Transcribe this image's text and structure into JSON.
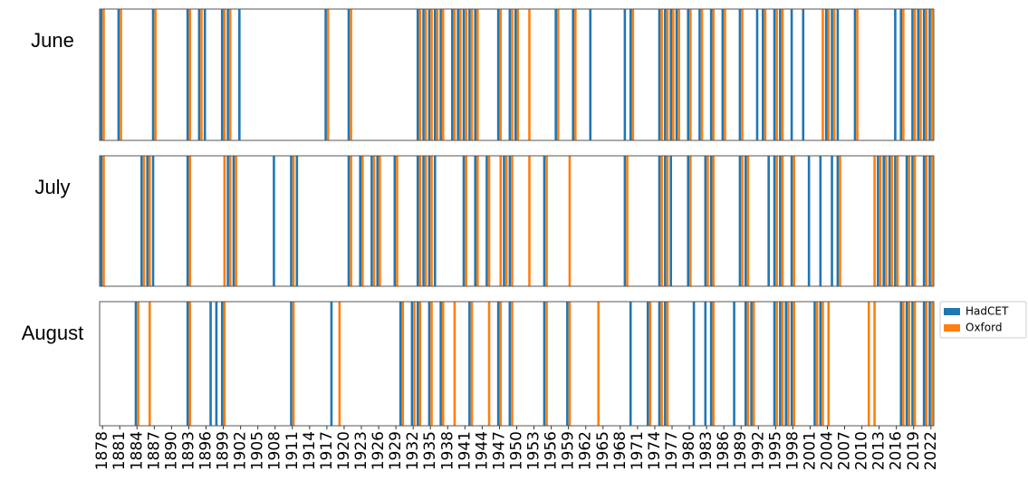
{
  "chart_data": [
    {
      "type": "bar",
      "title": "June",
      "xlim": [
        1877.5,
        2022.5
      ],
      "ylim": [
        0,
        1
      ],
      "series": [
        {
          "color": "#1f77b4",
          "x": [
            1878,
            1881,
            1887,
            1893,
            1895,
            1896,
            1899,
            1900,
            1902,
            1917,
            1921,
            1933,
            1934,
            1935,
            1936,
            1937,
            1939,
            1940,
            1941,
            1942,
            1943,
            1947,
            1949,
            1950,
            1957,
            1960,
            1963,
            1969,
            1970,
            1975,
            1976,
            1977,
            1978,
            1980,
            1982,
            1984,
            1986,
            1989,
            1992,
            1993,
            1995,
            1996,
            1998,
            2000,
            2004,
            2005,
            2006,
            2009,
            2016,
            2017,
            2019,
            2020,
            2021,
            2022
          ],
          "values": [
            1,
            1,
            1,
            1,
            1,
            1,
            1,
            1,
            1,
            1,
            1,
            1,
            1,
            1,
            1,
            1,
            1,
            1,
            1,
            1,
            1,
            1,
            1,
            1,
            1,
            1,
            1,
            1,
            1,
            1,
            1,
            1,
            1,
            1,
            1,
            1,
            1,
            1,
            1,
            1,
            1,
            1,
            1,
            1,
            1,
            1,
            1,
            1,
            1,
            1,
            1,
            1,
            1,
            1
          ]
        },
        {
          "color": "#ff7f0e",
          "x": [
            1878,
            1881,
            1887,
            1893,
            1895,
            1899,
            1900,
            1917,
            1921,
            1933,
            1934,
            1935,
            1936,
            1937,
            1939,
            1940,
            1941,
            1942,
            1943,
            1947,
            1949,
            1950,
            1952,
            1957,
            1960,
            1970,
            1975,
            1976,
            1977,
            1978,
            1980,
            1982,
            1984,
            1986,
            1989,
            1993,
            1995,
            1996,
            2003,
            2004,
            2005,
            2009,
            2017,
            2019,
            2020,
            2021,
            2022
          ],
          "values": [
            1,
            1,
            1,
            1,
            1,
            1,
            1,
            1,
            1,
            1,
            1,
            1,
            1,
            1,
            1,
            1,
            1,
            1,
            1,
            1,
            1,
            1,
            1,
            1,
            1,
            1,
            1,
            1,
            1,
            1,
            1,
            1,
            1,
            1,
            1,
            1,
            1,
            1,
            1,
            1,
            1,
            1,
            1,
            1,
            1,
            1,
            1
          ]
        }
      ]
    },
    {
      "type": "bar",
      "title": "July",
      "xlim": [
        1877.5,
        2022.5
      ],
      "ylim": [
        0,
        1
      ],
      "series": [
        {
          "color": "#1f77b4",
          "x": [
            1878,
            1885,
            1886,
            1887,
            1893,
            1900,
            1901,
            1908,
            1911,
            1912,
            1921,
            1923,
            1925,
            1926,
            1929,
            1933,
            1934,
            1935,
            1936,
            1941,
            1943,
            1945,
            1948,
            1949,
            1955,
            1969,
            1975,
            1976,
            1977,
            1980,
            1983,
            1984,
            1989,
            1990,
            1994,
            1995,
            1996,
            1998,
            2001,
            2003,
            2005,
            2006,
            2013,
            2014,
            2015,
            2016,
            2018,
            2019,
            2021,
            2022
          ],
          "values": [
            1,
            1,
            1,
            1,
            1,
            1,
            1,
            1,
            1,
            1,
            1,
            1,
            1,
            1,
            1,
            1,
            1,
            1,
            1,
            1,
            1,
            1,
            1,
            1,
            1,
            1,
            1,
            1,
            1,
            1,
            1,
            1,
            1,
            1,
            1,
            1,
            1,
            1,
            1,
            1,
            1,
            1,
            1,
            1,
            1,
            1,
            1,
            1,
            1,
            1
          ]
        },
        {
          "color": "#ff7f0e",
          "x": [
            1878,
            1885,
            1886,
            1893,
            1899,
            1900,
            1901,
            1911,
            1921,
            1923,
            1925,
            1926,
            1929,
            1933,
            1934,
            1935,
            1941,
            1943,
            1945,
            1947,
            1948,
            1949,
            1952,
            1955,
            1959,
            1969,
            1975,
            1976,
            1980,
            1983,
            1984,
            1989,
            1990,
            1995,
            1996,
            1998,
            2006,
            2012,
            2013,
            2014,
            2015,
            2016,
            2018,
            2019,
            2021,
            2022
          ],
          "values": [
            1,
            1,
            1,
            1,
            1,
            1,
            1,
            1,
            1,
            1,
            1,
            1,
            1,
            1,
            1,
            1,
            1,
            1,
            1,
            1,
            1,
            1,
            1,
            1,
            1,
            1,
            1,
            1,
            1,
            1,
            1,
            1,
            1,
            1,
            1,
            1,
            1,
            1,
            1,
            1,
            1,
            1,
            1,
            1,
            1,
            1
          ]
        }
      ]
    },
    {
      "type": "bar",
      "title": "August",
      "xlim": [
        1877.5,
        2022.5
      ],
      "ylim": [
        0,
        1
      ],
      "xticks": [
        1878,
        1881,
        1884,
        1887,
        1890,
        1893,
        1896,
        1899,
        1902,
        1905,
        1908,
        1911,
        1914,
        1917,
        1920,
        1923,
        1926,
        1929,
        1932,
        1935,
        1938,
        1941,
        1944,
        1947,
        1950,
        1953,
        1956,
        1959,
        1962,
        1965,
        1968,
        1971,
        1974,
        1977,
        1980,
        1983,
        1986,
        1989,
        1992,
        1995,
        1998,
        2001,
        2004,
        2007,
        2010,
        2013,
        2016,
        2019,
        2022
      ],
      "legend": "right",
      "series": [
        {
          "name": "HadCET",
          "color": "#1f77b4",
          "x": [
            1884,
            1893,
            1897,
            1898,
            1899,
            1911,
            1918,
            1930,
            1932,
            1933,
            1935,
            1937,
            1942,
            1947,
            1949,
            1955,
            1959,
            1970,
            1973,
            1975,
            1976,
            1981,
            1983,
            1984,
            1988,
            1990,
            1991,
            1995,
            1996,
            1997,
            1998,
            2002,
            2003,
            2017,
            2018,
            2019,
            2021,
            2022
          ],
          "values": [
            1,
            1,
            1,
            1,
            1,
            1,
            1,
            1,
            1,
            1,
            1,
            1,
            1,
            1,
            1,
            1,
            1,
            1,
            1,
            1,
            1,
            1,
            1,
            1,
            1,
            1,
            1,
            1,
            1,
            1,
            1,
            1,
            1,
            1,
            1,
            1,
            1,
            1
          ]
        },
        {
          "name": "Oxford",
          "color": "#ff7f0e",
          "x": [
            1884,
            1886,
            1893,
            1899,
            1911,
            1919,
            1930,
            1932,
            1933,
            1935,
            1937,
            1939,
            1942,
            1945,
            1947,
            1949,
            1955,
            1959,
            1964,
            1973,
            1975,
            1976,
            1984,
            1990,
            1991,
            1995,
            1996,
            1997,
            1998,
            2002,
            2003,
            2004,
            2011,
            2012,
            2017,
            2018,
            2019,
            2021,
            2022
          ],
          "values": [
            1,
            1,
            1,
            1,
            1,
            1,
            1,
            1,
            1,
            1,
            1,
            1,
            1,
            1,
            1,
            1,
            1,
            1,
            1,
            1,
            1,
            1,
            1,
            1,
            1,
            1,
            1,
            1,
            1,
            1,
            1,
            1,
            1,
            1,
            1,
            1,
            1,
            1,
            1
          ]
        }
      ]
    }
  ]
}
